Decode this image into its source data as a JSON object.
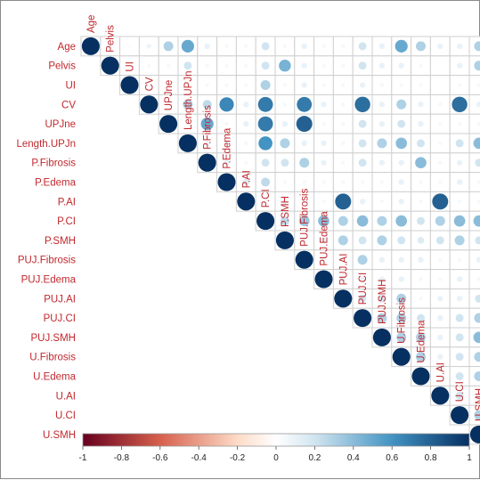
{
  "chart_data": {
    "type": "heatmap",
    "shape": "circle",
    "layout": "upper-triangle",
    "variables": [
      "Age",
      "Pelvis",
      "UI",
      "CV",
      "UPJne",
      "Length.UPJn",
      "P.Fibrosis",
      "P.Edema",
      "P.AI",
      "P.CI",
      "P.SMH",
      "PUJ.Fibrosis",
      "PUJ.Edema",
      "PUJ.AI",
      "PUJ.CI",
      "PUJ.SMH",
      "U.Fibrosis",
      "U.Edema",
      "U.AI",
      "U.CI",
      "U.SMH"
    ],
    "matrix": [
      [
        1,
        0.05,
        0.03,
        0.08,
        0.3,
        0.5,
        0.1,
        0.05,
        0.05,
        0.2,
        0.05,
        0.1,
        0.05,
        0.05,
        0.2,
        0.1,
        0.5,
        0.3,
        0.1,
        0.1,
        0.3
      ],
      [
        0.05,
        1,
        0.02,
        0.05,
        0.05,
        0.2,
        0.05,
        0.05,
        0.05,
        0.2,
        0.45,
        0.1,
        0.05,
        0.05,
        0.2,
        0.1,
        0.1,
        0.05,
        0.02,
        0.1,
        0.3
      ],
      [
        0.03,
        0.02,
        1,
        0.05,
        0.05,
        0.05,
        0.05,
        0.05,
        0.05,
        0.3,
        0.05,
        0.1,
        0.05,
        0.05,
        0.1,
        0.05,
        0.05,
        0.05,
        0.02,
        0.05,
        0.05
      ],
      [
        0.08,
        0.05,
        0.05,
        1,
        0.05,
        0.3,
        0.25,
        0.65,
        0.1,
        0.7,
        0.05,
        0.7,
        0.1,
        0.05,
        0.75,
        0.1,
        0.3,
        0.1,
        0.05,
        0.75,
        0.1
      ],
      [
        0.3,
        0.05,
        0.05,
        0.05,
        1,
        0.05,
        0.5,
        0.05,
        0.1,
        0.7,
        0.1,
        0.8,
        0.05,
        0.05,
        0.2,
        0.1,
        0.2,
        0.1,
        0.05,
        0.05,
        0.05
      ],
      [
        0.5,
        0.2,
        0.05,
        0.3,
        0.05,
        1,
        0.1,
        0.1,
        0.05,
        0.6,
        0.3,
        0.1,
        0.1,
        0.05,
        0.2,
        0.3,
        0.4,
        0.2,
        0.05,
        0.2,
        0.4
      ],
      [
        0.1,
        0.05,
        0.05,
        0.25,
        0.5,
        0.1,
        1,
        0.1,
        0.05,
        0.2,
        0.2,
        0.3,
        0.1,
        0.05,
        0.2,
        0.1,
        0.1,
        0.4,
        0.05,
        0.1,
        0.2
      ],
      [
        0.05,
        0.05,
        0.05,
        0.65,
        0.05,
        0.1,
        0.1,
        1,
        0.15,
        0.25,
        0.05,
        0.05,
        0.05,
        0.05,
        0.05,
        0.05,
        0.1,
        0.05,
        0.05,
        0.1,
        0.05
      ],
      [
        0.05,
        0.05,
        0.05,
        0.1,
        0.1,
        0.05,
        0.05,
        0.15,
        1,
        0.05,
        0.1,
        0.05,
        0.05,
        0.8,
        0.1,
        0.05,
        0.1,
        0.05,
        0.8,
        0.05,
        0.05
      ],
      [
        0.2,
        0.2,
        0.3,
        0.7,
        0.7,
        0.6,
        0.2,
        0.25,
        0.05,
        1,
        0.25,
        0.35,
        0.4,
        0.3,
        0.4,
        0.3,
        0.4,
        0.2,
        0.3,
        0.4,
        0.4
      ],
      [
        0.05,
        0.45,
        0.05,
        0.05,
        0.1,
        0.3,
        0.2,
        0.05,
        0.1,
        0.25,
        1,
        0.05,
        0.1,
        0.3,
        0.2,
        0.3,
        0.2,
        0.15,
        0.2,
        0.3,
        0.2
      ],
      [
        0.1,
        0.1,
        0.1,
        0.7,
        0.8,
        0.1,
        0.3,
        0.05,
        0.05,
        0.35,
        0.05,
        1,
        0.05,
        0.05,
        0.3,
        0.1,
        0.1,
        0.1,
        0.05,
        0.05,
        0.1
      ],
      [
        0.05,
        0.05,
        0.05,
        0.1,
        0.05,
        0.1,
        0.1,
        0.05,
        0.05,
        0.4,
        0.1,
        0.05,
        1,
        0.1,
        0.1,
        0.1,
        0.1,
        0.05,
        0.05,
        0.1,
        0.05
      ],
      [
        0.05,
        0.05,
        0.05,
        0.05,
        0.05,
        0.05,
        0.05,
        0.05,
        0.8,
        0.3,
        0.3,
        0.05,
        0.1,
        1,
        0.2,
        0.2,
        0.3,
        0.05,
        0.1,
        0.1,
        0.2
      ],
      [
        0.2,
        0.2,
        0.1,
        0.75,
        0.2,
        0.2,
        0.2,
        0.05,
        0.1,
        0.4,
        0.2,
        0.3,
        0.1,
        0.2,
        1,
        0.3,
        0.3,
        0.2,
        0.1,
        0.2,
        0.3
      ],
      [
        0.1,
        0.1,
        0.05,
        0.1,
        0.1,
        0.3,
        0.1,
        0.05,
        0.05,
        0.3,
        0.3,
        0.1,
        0.1,
        0.2,
        0.3,
        1,
        0.3,
        0.3,
        0.1,
        0.2,
        0.4
      ],
      [
        0.5,
        0.1,
        0.05,
        0.3,
        0.2,
        0.4,
        0.1,
        0.1,
        0.1,
        0.4,
        0.2,
        0.1,
        0.1,
        0.3,
        0.3,
        0.3,
        1,
        0.3,
        0.1,
        0.2,
        0.3
      ],
      [
        0.3,
        0.05,
        0.05,
        0.1,
        0.1,
        0.2,
        0.4,
        0.05,
        0.05,
        0.2,
        0.15,
        0.1,
        0.05,
        0.05,
        0.2,
        0.3,
        0.3,
        1,
        0.05,
        0.2,
        0.3
      ],
      [
        0.1,
        0.02,
        0.02,
        0.05,
        0.05,
        0.05,
        0.05,
        0.05,
        0.8,
        0.3,
        0.2,
        0.05,
        0.05,
        0.1,
        0.1,
        0.1,
        0.1,
        0.05,
        1,
        0.2,
        0.1
      ],
      [
        0.1,
        0.1,
        0.05,
        0.75,
        0.05,
        0.2,
        0.1,
        0.1,
        0.05,
        0.4,
        0.3,
        0.05,
        0.1,
        0.1,
        0.2,
        0.2,
        0.2,
        0.2,
        0.2,
        1,
        0.3
      ],
      [
        0.3,
        0.3,
        0.05,
        0.1,
        0.05,
        0.4,
        0.2,
        0.05,
        0.05,
        0.4,
        0.2,
        0.1,
        0.05,
        0.2,
        0.3,
        0.4,
        0.3,
        0.3,
        0.1,
        0.3,
        1
      ]
    ],
    "color_scale": {
      "min": -1,
      "max": 1,
      "ticks": [
        -1,
        -0.8,
        -0.6,
        -0.4,
        -0.2,
        0,
        0.2,
        0.4,
        0.6,
        0.8,
        1
      ],
      "tick_labels": [
        "-1",
        "-0.8",
        "-0.6",
        "-0.4",
        "-0.2",
        "0",
        "0.2",
        "0.4",
        "0.6",
        "0.8",
        "1"
      ],
      "stops": [
        {
          "value": -1,
          "color": "#67001F"
        },
        {
          "value": -0.6,
          "color": "#D6604D"
        },
        {
          "value": -0.2,
          "color": "#FDDBC7"
        },
        {
          "value": 0,
          "color": "#FFFFFF"
        },
        {
          "value": 0.2,
          "color": "#D1E5F0"
        },
        {
          "value": 0.6,
          "color": "#4393C3"
        },
        {
          "value": 1,
          "color": "#053061"
        }
      ],
      "legend_position": "bottom"
    },
    "colors": {
      "label_text": "#c0282d",
      "grid_line": "#cfcfcf"
    }
  }
}
